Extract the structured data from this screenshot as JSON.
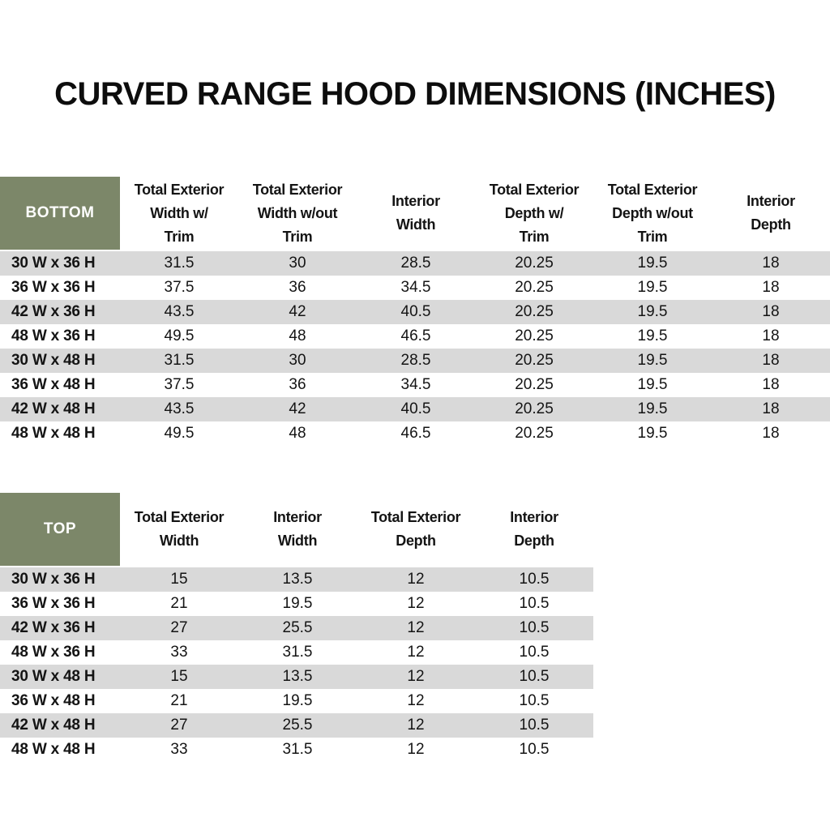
{
  "page_title": "CURVED RANGE HOOD DIMENSIONS (INCHES)",
  "colors": {
    "corner_header_green": "#7C8769",
    "row_stripe_gray": "#D9D9D9",
    "corner_text": "#FFFFFF",
    "body_text": "#141414",
    "background": "#FFFFFF"
  },
  "tables": {
    "bottom": {
      "corner_label": "BOTTOM",
      "column_headers": [
        "Total Exterior\nWidth w/\nTrim",
        "Total Exterior\nWidth w/out\nTrim",
        "Interior\nWidth",
        "Total Exterior\nDepth w/\nTrim",
        "Total Exterior\nDepth w/out\nTrim",
        "Interior\nDepth"
      ],
      "rows": [
        {
          "size": "30 W x 36 H",
          "values": [
            "31.5",
            "30",
            "28.5",
            "20.25",
            "19.5",
            "18"
          ]
        },
        {
          "size": "36 W x 36 H",
          "values": [
            "37.5",
            "36",
            "34.5",
            "20.25",
            "19.5",
            "18"
          ]
        },
        {
          "size": "42 W x 36 H",
          "values": [
            "43.5",
            "42",
            "40.5",
            "20.25",
            "19.5",
            "18"
          ]
        },
        {
          "size": "48 W x 36 H",
          "values": [
            "49.5",
            "48",
            "46.5",
            "20.25",
            "19.5",
            "18"
          ]
        },
        {
          "size": "30 W x 48 H",
          "values": [
            "31.5",
            "30",
            "28.5",
            "20.25",
            "19.5",
            "18"
          ]
        },
        {
          "size": "36 W x 48 H",
          "values": [
            "37.5",
            "36",
            "34.5",
            "20.25",
            "19.5",
            "18"
          ]
        },
        {
          "size": "42 W x 48 H",
          "values": [
            "43.5",
            "42",
            "40.5",
            "20.25",
            "19.5",
            "18"
          ]
        },
        {
          "size": "48 W x 48 H",
          "values": [
            "49.5",
            "48",
            "46.5",
            "20.25",
            "19.5",
            "18"
          ]
        }
      ]
    },
    "top": {
      "corner_label": "TOP",
      "column_headers": [
        "Total Exterior\nWidth",
        "Interior\nWidth",
        "Total Exterior\nDepth",
        "Interior\nDepth"
      ],
      "rows": [
        {
          "size": "30 W x 36 H",
          "values": [
            "15",
            "13.5",
            "12",
            "10.5"
          ]
        },
        {
          "size": "36 W x 36 H",
          "values": [
            "21",
            "19.5",
            "12",
            "10.5"
          ]
        },
        {
          "size": "42 W x 36 H",
          "values": [
            "27",
            "25.5",
            "12",
            "10.5"
          ]
        },
        {
          "size": "48 W x 36 H",
          "values": [
            "33",
            "31.5",
            "12",
            "10.5"
          ]
        },
        {
          "size": "30 W x 48 H",
          "values": [
            "15",
            "13.5",
            "12",
            "10.5"
          ]
        },
        {
          "size": "36 W x 48 H",
          "values": [
            "21",
            "19.5",
            "12",
            "10.5"
          ]
        },
        {
          "size": "42 W x 48 H",
          "values": [
            "27",
            "25.5",
            "12",
            "10.5"
          ]
        },
        {
          "size": "48 W x 48 H",
          "values": [
            "33",
            "31.5",
            "12",
            "10.5"
          ]
        }
      ]
    }
  }
}
